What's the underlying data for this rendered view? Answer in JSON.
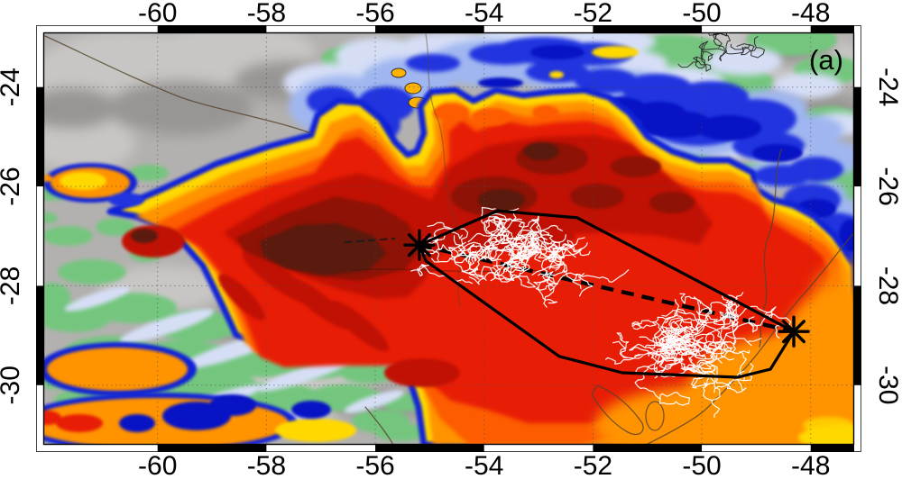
{
  "panel_label": "(a)",
  "axes": {
    "lon_ticks": [
      {
        "label": "-60",
        "value": -60
      },
      {
        "label": "-58",
        "value": -58
      },
      {
        "label": "-56",
        "value": -56
      },
      {
        "label": "-54",
        "value": -54
      },
      {
        "label": "-52",
        "value": -52
      },
      {
        "label": "-50",
        "value": -50
      },
      {
        "label": "-48",
        "value": -48
      }
    ],
    "lat_ticks": [
      {
        "label": "-24",
        "value": -24
      },
      {
        "label": "-26",
        "value": -26
      },
      {
        "label": "-28",
        "value": -28
      },
      {
        "label": "-30",
        "value": -30
      }
    ],
    "extent": {
      "lon_min": -62.1,
      "lon_max": -47.2,
      "lat_min": -31.2,
      "lat_max": -22.9
    },
    "grid": "dotted"
  },
  "overlay": {
    "hull_lonlat": [
      [
        -55.19,
        -27.18
      ],
      [
        -53.75,
        -26.49
      ],
      [
        -52.29,
        -26.63
      ],
      [
        -48.31,
        -28.92
      ],
      [
        -48.74,
        -29.68
      ],
      [
        -49.34,
        -29.84
      ],
      [
        -51.46,
        -29.75
      ],
      [
        -52.62,
        -29.42
      ],
      [
        -55.07,
        -27.5
      ]
    ],
    "track": {
      "start_lonlat": [
        -55.19,
        -27.18
      ],
      "end_lonlat": [
        -48.31,
        -28.92
      ],
      "style": "dashed",
      "marker": "asterisk"
    },
    "lightning": {
      "color": "#ffffff",
      "clusters": [
        {
          "center_lonlat": [
            -53.37,
            -27.41
          ],
          "spread_deg": [
            1.55,
            0.62
          ],
          "strokes": 36
        },
        {
          "center_lonlat": [
            -50.3,
            -29.13
          ],
          "spread_deg": [
            1.55,
            0.66
          ],
          "strokes": 36
        }
      ]
    },
    "black_traces": {
      "center_lonlat": [
        -49.5,
        -23.26
      ],
      "spread_deg": [
        0.43,
        0.18
      ],
      "strokes": 5,
      "color": "#2b2b2b"
    }
  },
  "colors": {
    "background_gray": "#b3b1af",
    "gray_light": "#c8c6c4",
    "gray_dark": "#989694",
    "green": "#74c67e",
    "pale_blue": "#d6def6",
    "light_blue": "#9fb6f0",
    "blue": "#2134df",
    "dark_blue": "#0713c4",
    "rim_blue": "#1022d8",
    "yellow": "#ffd800",
    "orange": "#ff9300",
    "deep_orange": "#fd5c00",
    "red": "#e81d06",
    "dark_red": "#c11104",
    "darker_red": "#8e1205",
    "maroon": "#5a1a0e",
    "boundary_line": "#55432e",
    "frame": "#000000",
    "label": "#000000",
    "hull": "#000000",
    "track": "#000000",
    "lightning": "#ffffff"
  }
}
